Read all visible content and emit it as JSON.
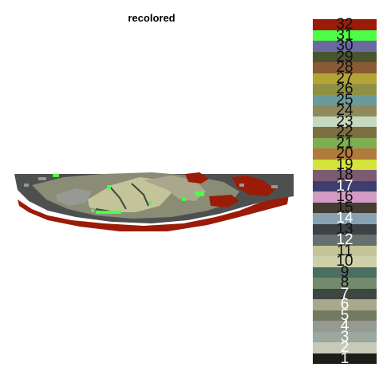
{
  "title": "recolored",
  "legend": {
    "entries": [
      {
        "label": "32",
        "color": "#9a1c08"
      },
      {
        "label": "31",
        "color": "#4cff46"
      },
      {
        "label": "30",
        "color": "#6a69a0"
      },
      {
        "label": "29",
        "color": "#4a5530"
      },
      {
        "label": "28",
        "color": "#8a5a34"
      },
      {
        "label": "27",
        "color": "#b4a436"
      },
      {
        "label": "26",
        "color": "#8f9044"
      },
      {
        "label": "25",
        "color": "#6a9a9a"
      },
      {
        "label": "24",
        "color": "#8f8a5c"
      },
      {
        "label": "23",
        "color": "#c6d8be"
      },
      {
        "label": "22",
        "color": "#7b7041"
      },
      {
        "label": "21",
        "color": "#7fae52"
      },
      {
        "label": "20",
        "color": "#b07a3a"
      },
      {
        "label": "19",
        "color": "#d4e43a"
      },
      {
        "label": "18",
        "color": "#7c5a70"
      },
      {
        "label": "17",
        "color": "#3e3e6e"
      },
      {
        "label": "16",
        "color": "#d29ac4"
      },
      {
        "label": "15",
        "color": "#463e32"
      },
      {
        "label": "14",
        "color": "#88a2b2"
      },
      {
        "label": "13",
        "color": "#3c4246"
      },
      {
        "label": "12",
        "color": "#66706e"
      },
      {
        "label": "11",
        "color": "#c4c496"
      },
      {
        "label": "10",
        "color": "#ced0a8"
      },
      {
        "label": "9",
        "color": "#4c6e62"
      },
      {
        "label": "8",
        "color": "#748a6c"
      },
      {
        "label": "7",
        "color": "#3e4640"
      },
      {
        "label": "6",
        "color": "#aaa88c"
      },
      {
        "label": "5",
        "color": "#747a62"
      },
      {
        "label": "4",
        "color": "#969a92"
      },
      {
        "label": "3",
        "color": "#9aa89e"
      },
      {
        "label": "2",
        "color": "#c8cab8"
      },
      {
        "label": "1",
        "color": "#1c1e1a"
      }
    ]
  },
  "colors": {
    "background": "#ffffff",
    "dark_gray": "#4e5050",
    "dark_red": "#9a1c08",
    "bright_green": "#4cff46",
    "olive_gray": "#8a8c76",
    "light_khaki": "#c4c49a",
    "khaki": "#aaa88c"
  }
}
